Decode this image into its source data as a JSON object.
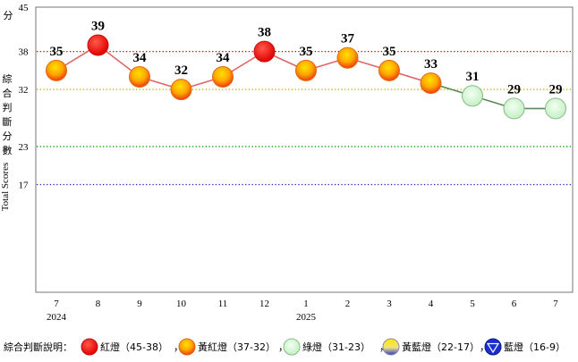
{
  "chart_data": {
    "type": "line",
    "y_unit": "分",
    "ylabel_zh": "綜合判斷分數",
    "ylabel_en": "Total Scores",
    "ylim": [
      0,
      45
    ],
    "y_ticks": [
      17,
      23,
      32,
      38,
      45
    ],
    "thresholds": [
      {
        "value": 38,
        "color": "#c00000"
      },
      {
        "value": 32,
        "color": "#c9a300"
      },
      {
        "value": 23,
        "color": "#00a000"
      },
      {
        "value": 17,
        "color": "#2020c0"
      }
    ],
    "x_month_labels": [
      "7",
      "8",
      "9",
      "10",
      "11",
      "12",
      "1",
      "2",
      "3",
      "4",
      "5",
      "6",
      "7"
    ],
    "x_year_labels": [
      {
        "index": 0,
        "label": "2024"
      },
      {
        "index": 6,
        "label": "2025"
      }
    ],
    "values": [
      35,
      39,
      34,
      32,
      34,
      38,
      35,
      37,
      35,
      33,
      31,
      29,
      29
    ],
    "signal_types": [
      "yellow-red",
      "red",
      "yellow-red",
      "yellow-red",
      "yellow-red",
      "red",
      "yellow-red",
      "yellow-red",
      "yellow-red",
      "yellow-red",
      "green",
      "green",
      "green"
    ],
    "line_colors": {
      "warm": "#e06666",
      "green": "#5a8a5a"
    },
    "signal_colors": {
      "red": "#e81010",
      "yellow-red": "#f7a400",
      "green": "#d8f5d8",
      "yellow-blue": "#e8e070",
      "blue": "#1a2fd0"
    },
    "grid": false
  },
  "legend": {
    "title": "綜合判斷說明：",
    "items": [
      {
        "type": "red",
        "label": "紅燈（45-38）"
      },
      {
        "type": "yellow-red",
        "label": "黃紅燈（37-32）"
      },
      {
        "type": "green",
        "label": "綠燈（31-23）"
      },
      {
        "type": "yellow-blue",
        "label": "黃藍燈（22-17）"
      },
      {
        "type": "blue",
        "label": "藍燈（16-9）"
      }
    ],
    "separator": "，"
  }
}
